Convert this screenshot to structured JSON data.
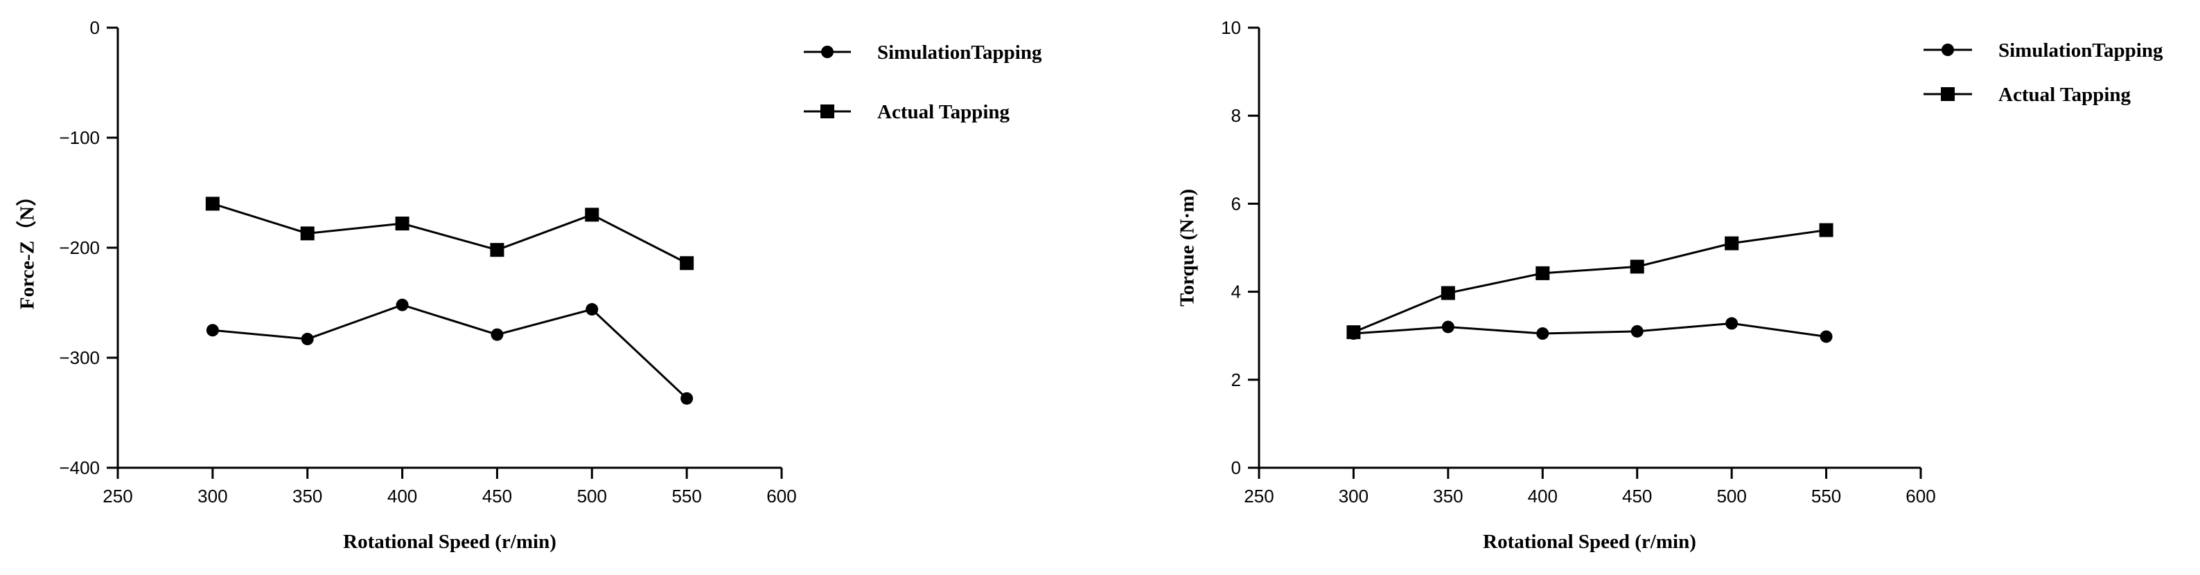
{
  "chart_data": [
    {
      "type": "line",
      "title": "",
      "xlabel": "Rotational Speed  (r/min)",
      "ylabel": "Force-Z（N）",
      "xlim": [
        250,
        600
      ],
      "ylim": [
        -400,
        0
      ],
      "x_ticks": [
        250,
        300,
        350,
        400,
        450,
        500,
        550,
        600
      ],
      "y_ticks": [
        0,
        -100,
        -200,
        -300,
        -400
      ],
      "x_tick_labels": [
        "250",
        "300",
        "350",
        "400",
        "450",
        "500",
        "550",
        "600"
      ],
      "y_tick_labels": [
        "0",
        "−100",
        "−200",
        "−300",
        "−400"
      ],
      "grid": false,
      "legend_position": "top-right",
      "x": [
        300,
        350,
        400,
        450,
        500,
        550
      ],
      "series": [
        {
          "name": "SimulationTapping",
          "marker": "circle",
          "values": [
            -275,
            -283,
            -252,
            -279,
            -256,
            -337
          ]
        },
        {
          "name": "Actual Tapping",
          "marker": "square",
          "values": [
            -160,
            -187,
            -178,
            -202,
            -170,
            -214
          ]
        }
      ]
    },
    {
      "type": "line",
      "title": "",
      "xlabel": "Rotational Speed (r/min)",
      "ylabel": "Torque (N·m)",
      "xlim": [
        250,
        600
      ],
      "ylim": [
        0,
        10
      ],
      "x_ticks": [
        250,
        300,
        350,
        400,
        450,
        500,
        550,
        600
      ],
      "y_ticks": [
        0,
        2,
        4,
        6,
        8,
        10
      ],
      "x_tick_labels": [
        "250",
        "300",
        "350",
        "400",
        "450",
        "500",
        "550",
        "600"
      ],
      "y_tick_labels": [
        "0",
        "2",
        "4",
        "6",
        "8",
        "10"
      ],
      "grid": false,
      "legend_position": "top-right",
      "x": [
        300,
        350,
        400,
        450,
        500,
        550
      ],
      "series": [
        {
          "name": "SimulationTapping",
          "marker": "circle",
          "values": [
            3.05,
            3.2,
            3.05,
            3.1,
            3.28,
            2.98
          ]
        },
        {
          "name": "Actual Tapping",
          "marker": "square",
          "values": [
            3.08,
            3.97,
            4.42,
            4.57,
            5.1,
            5.4
          ]
        }
      ]
    }
  ]
}
